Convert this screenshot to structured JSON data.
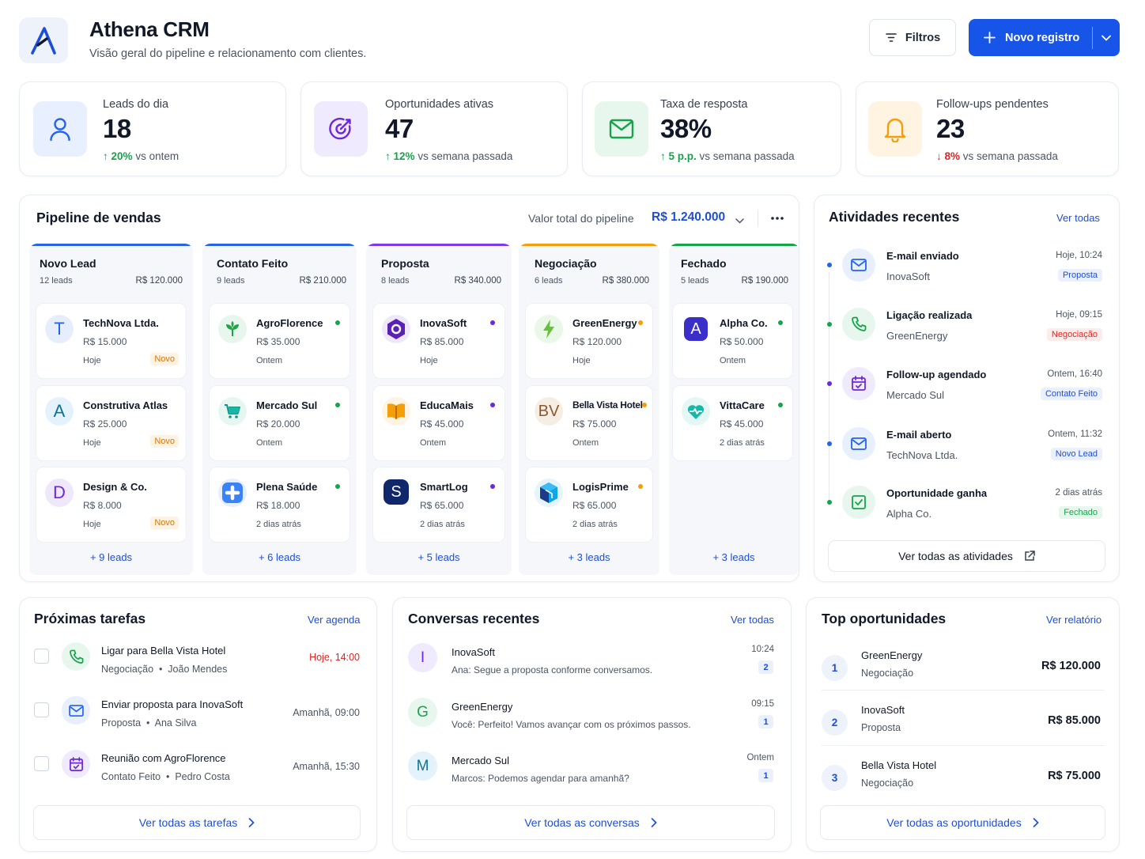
{
  "header": {
    "title": "Athena CRM",
    "subtitle": "Visão geral do pipeline e relacionamento com clientes.",
    "filters_label": "Filtros",
    "new_record_label": "Novo registro"
  },
  "kpis": [
    {
      "label": "Leads do dia",
      "value": "18",
      "delta": "20%",
      "delta_text": "vs ontem",
      "trend": "up",
      "color": "#2563eb",
      "icon": "user-icon"
    },
    {
      "label": "Oportunidades ativas",
      "value": "47",
      "delta": "12%",
      "delta_text": "vs semana passada",
      "trend": "up",
      "color": "#6d28d9",
      "icon": "target-icon"
    },
    {
      "label": "Taxa de resposta",
      "value": "38%",
      "delta": "5 p.p.",
      "delta_text": "vs semana passada",
      "trend": "up",
      "color": "#16a34a",
      "icon": "mail-icon"
    },
    {
      "label": "Follow-ups pendentes",
      "value": "23",
      "delta": "8%",
      "delta_text": "vs semana passada",
      "trend": "down",
      "color": "#f59e0b",
      "icon": "bell-icon"
    }
  ],
  "pipeline": {
    "title": "Pipeline de vendas",
    "total_label": "Valor total do pipeline",
    "total_value": "R$ 1.240.000",
    "columns": [
      {
        "name": "Novo Lead",
        "count": "12 leads",
        "total": "R$ 120.000",
        "color": "#2563eb",
        "more": "+ 9 leads",
        "leads": [
          {
            "initial": "T",
            "name": "TechNova Ltda.",
            "value": "R$ 15.000",
            "date": "Hoje",
            "tag": "Novo"
          },
          {
            "initial": "A",
            "name": "Construtiva Atlas",
            "value": "R$ 25.000",
            "date": "Hoje",
            "tag": "Novo"
          },
          {
            "initial": "D",
            "name": "Design & Co.",
            "value": "R$ 8.000",
            "date": "Hoje",
            "tag": "Novo"
          }
        ]
      },
      {
        "name": "Contato Feito",
        "count": "9 leads",
        "total": "R$ 210.000",
        "color": "#2563eb",
        "more": "+ 6 leads",
        "leads": [
          {
            "name": "AgroFlorence",
            "value": "R$ 35.000",
            "date": "Ontem",
            "icon": "leaf-icon"
          },
          {
            "name": "Mercado Sul",
            "value": "R$ 20.000",
            "date": "Ontem",
            "icon": "cart-icon"
          },
          {
            "name": "Plena Saúde",
            "value": "R$ 18.000",
            "date": "2 dias atrás",
            "icon": "health-cross-icon"
          }
        ]
      },
      {
        "name": "Proposta",
        "count": "8 leads",
        "total": "R$ 340.000",
        "color": "#7c3aed",
        "more": "+ 5 leads",
        "leads": [
          {
            "name": "InovaSoft",
            "value": "R$ 85.000",
            "date": "Hoje",
            "icon": "hexagon-icon"
          },
          {
            "name": "EducaMais",
            "value": "R$ 45.000",
            "date": "Ontem",
            "icon": "book-icon"
          },
          {
            "initial": "S",
            "name": "SmartLog",
            "value": "R$ 65.000",
            "date": "2 dias atrás"
          }
        ]
      },
      {
        "name": "Negociação",
        "count": "6 leads",
        "total": "R$ 380.000",
        "color": "#f59e0b",
        "more": "+ 3 leads",
        "leads": [
          {
            "name": "GreenEnergy",
            "value": "R$ 120.000",
            "date": "Hoje",
            "icon": "lightning-icon"
          },
          {
            "initial": "BV",
            "name": "Bella Vista Hotel",
            "value": "R$ 75.000",
            "date": "Ontem"
          },
          {
            "name": "LogisPrime",
            "value": "R$ 65.000",
            "date": "2 dias atrás",
            "icon": "cube-icon"
          }
        ]
      },
      {
        "name": "Fechado",
        "count": "5 leads",
        "total": "R$ 190.000",
        "color": "#16a34a",
        "more": "+ 3 leads",
        "leads": [
          {
            "initial": "A",
            "name": "Alpha Co.",
            "value": "R$ 50.000",
            "date": "Ontem"
          },
          {
            "name": "VittaCare",
            "value": "R$ 45.000",
            "date": "2 dias atrás",
            "icon": "heart-pulse-icon"
          }
        ]
      }
    ]
  },
  "activities": {
    "title": "Atividades recentes",
    "see_all": "Ver todas",
    "footer": "Ver todas as atividades",
    "items": [
      {
        "title": "E-mail enviado",
        "subject": "InovaSoft",
        "time": "Hoje, 10:24",
        "badge": "Proposta",
        "icon": "mail-icon"
      },
      {
        "title": "Ligação realizada",
        "subject": "GreenEnergy",
        "time": "Hoje, 09:15",
        "badge": "Negociação",
        "icon": "phone-icon"
      },
      {
        "title": "Follow-up agendado",
        "subject": "Mercado Sul",
        "time": "Ontem, 16:40",
        "badge": "Contato Feito",
        "icon": "calendar-icon"
      },
      {
        "title": "E-mail aberto",
        "subject": "TechNova Ltda.",
        "time": "Ontem, 11:32",
        "badge": "Novo Lead",
        "icon": "mail-icon"
      },
      {
        "title": "Oportunidade ganha",
        "subject": "Alpha Co.",
        "time": "2 dias atrás",
        "badge": "Fechado",
        "icon": "check-square-icon"
      }
    ]
  },
  "tasks": {
    "title": "Próximas tarefas",
    "link": "Ver agenda",
    "footer": "Ver todas as tarefas",
    "items": [
      {
        "title": "Ligar para Bella Vista Hotel",
        "stage": "Negociação",
        "owner": "João Mendes",
        "time": "Hoje, 14:00",
        "icon": "phone-icon"
      },
      {
        "title": "Enviar proposta para InovaSoft",
        "stage": "Proposta",
        "owner": "Ana Silva",
        "time": "Amanhã, 09:00",
        "icon": "mail-icon"
      },
      {
        "title": "Reunião com AgroFlorence",
        "stage": "Contato Feito",
        "owner": "Pedro Costa",
        "time": "Amanhã, 15:30",
        "icon": "calendar-icon"
      }
    ]
  },
  "conversations": {
    "title": "Conversas recentes",
    "link": "Ver todas",
    "footer": "Ver todas as conversas",
    "items": [
      {
        "initial": "I",
        "name": "InovaSoft",
        "message": "Ana: Segue a proposta conforme conversamos.",
        "time": "10:24",
        "unread": "2"
      },
      {
        "initial": "G",
        "name": "GreenEnergy",
        "message": "Você: Perfeito! Vamos avançar com os próximos passos.",
        "time": "09:15",
        "unread": "1"
      },
      {
        "initial": "M",
        "name": "Mercado Sul",
        "message": "Marcos: Podemos agendar para amanhã?",
        "time": "Ontem",
        "unread": "1"
      }
    ]
  },
  "top_opportunities": {
    "title": "Top oportunidades",
    "link": "Ver relatório",
    "footer": "Ver todas as oportunidades",
    "items": [
      {
        "rank": "1",
        "name": "GreenEnergy",
        "stage": "Negociação",
        "value": "R$ 120.000"
      },
      {
        "rank": "2",
        "name": "InovaSoft",
        "stage": "Proposta",
        "value": "R$ 85.000"
      },
      {
        "rank": "3",
        "name": "Bella Vista Hotel",
        "stage": "Negociação",
        "value": "R$ 75.000"
      }
    ]
  }
}
